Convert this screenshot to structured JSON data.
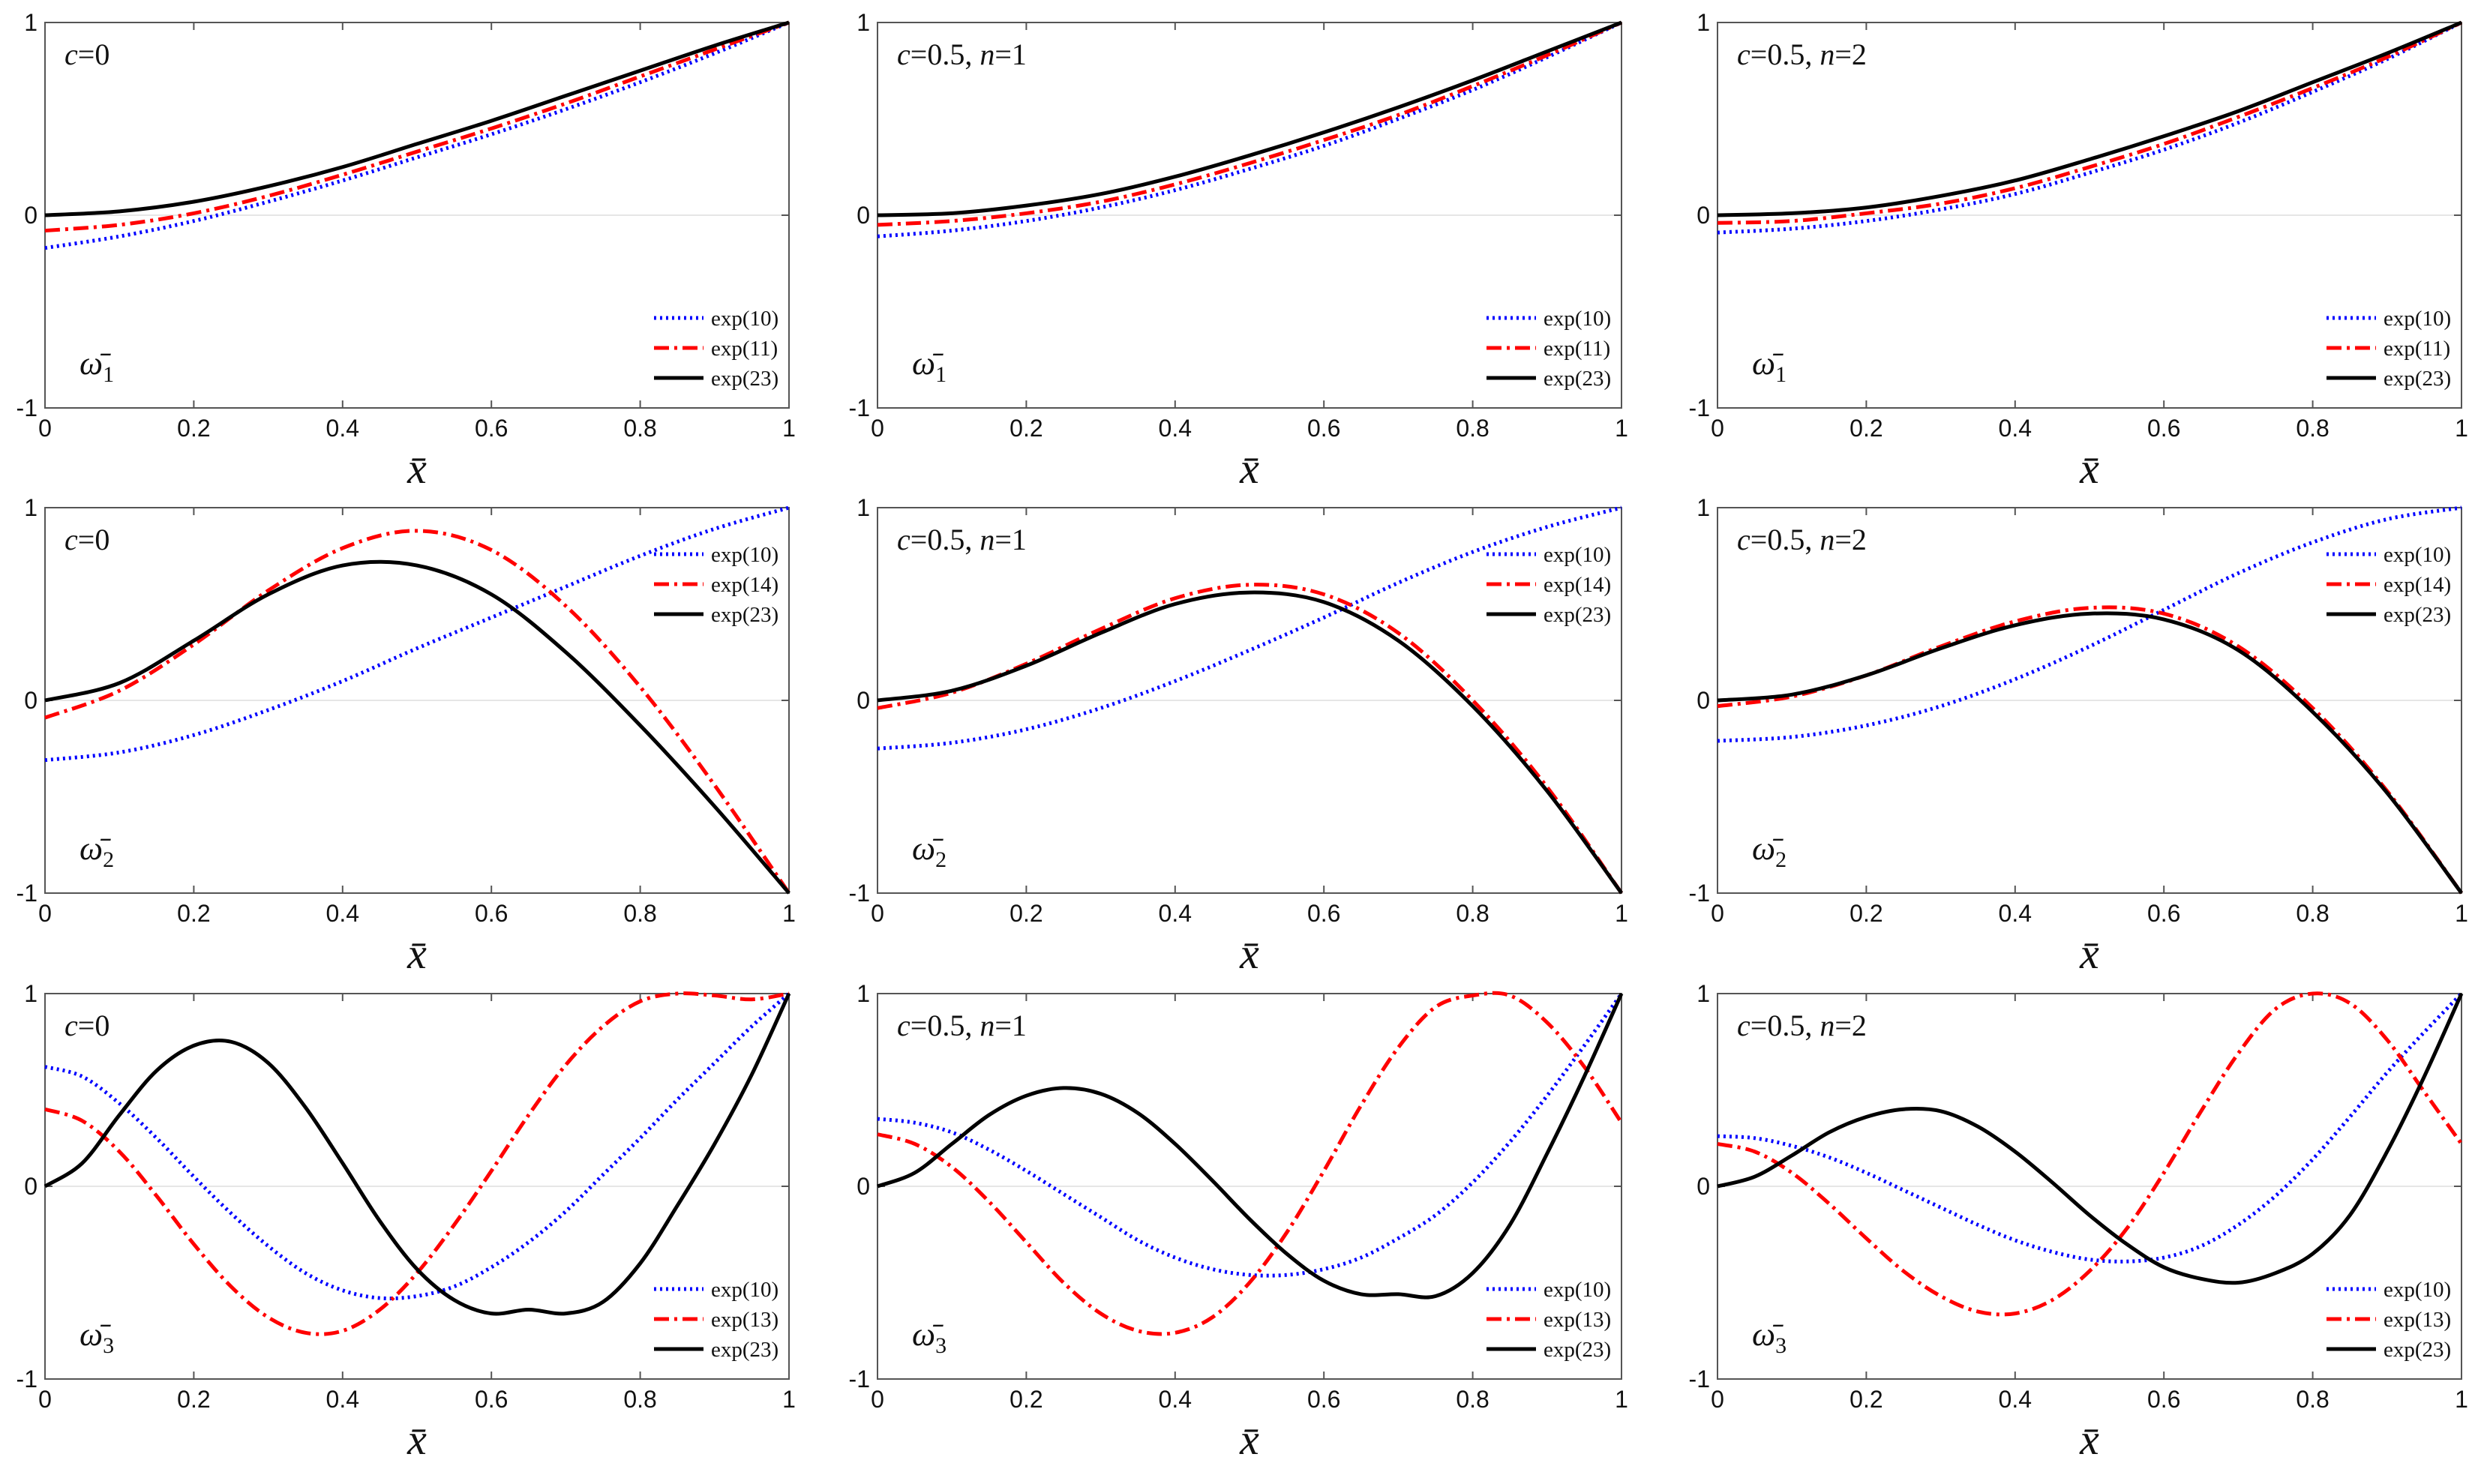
{
  "chart_data": [
    {
      "type": "line",
      "panel": "c=0, mode 1",
      "title": "c=0",
      "mode_symbol": "ω̄",
      "mode_index": "1",
      "xlabel": "x̄",
      "ylim": [
        -1,
        1
      ],
      "xlim": [
        0,
        1
      ],
      "x_ticks": [
        "0",
        "0.2",
        "0.4",
        "0.6",
        "0.8",
        "1"
      ],
      "y_ticks": [
        "-1",
        "0",
        "1"
      ],
      "legend_position": "bottom-right",
      "x": [
        0,
        0.1,
        0.2,
        0.3,
        0.4,
        0.5,
        0.6,
        0.7,
        0.8,
        0.9,
        1
      ],
      "series": [
        {
          "name": "exp(10)",
          "style": "dotted",
          "color": "#0000ff",
          "values": [
            -0.17,
            -0.11,
            -0.03,
            0.07,
            0.18,
            0.3,
            0.42,
            0.55,
            0.69,
            0.84,
            1.0
          ]
        },
        {
          "name": "exp(11)",
          "style": "dashdot",
          "color": "#ff0000",
          "values": [
            -0.08,
            -0.05,
            0.01,
            0.1,
            0.21,
            0.33,
            0.45,
            0.58,
            0.72,
            0.86,
            1.0
          ]
        },
        {
          "name": "exp(23)",
          "style": "solid",
          "color": "#000000",
          "values": [
            0,
            0.02,
            0.07,
            0.15,
            0.25,
            0.37,
            0.49,
            0.62,
            0.75,
            0.88,
            1.0
          ]
        }
      ]
    },
    {
      "type": "line",
      "panel": "c=0.5, n=1, mode 1",
      "title": "c=0.5, n=1",
      "mode_symbol": "ω̄",
      "mode_index": "1",
      "xlabel": "x̄",
      "ylim": [
        -1,
        1
      ],
      "xlim": [
        0,
        1
      ],
      "x_ticks": [
        "0",
        "0.2",
        "0.4",
        "0.6",
        "0.8",
        "1"
      ],
      "y_ticks": [
        "-1",
        "0",
        "1"
      ],
      "legend_position": "bottom-right",
      "x": [
        0,
        0.1,
        0.2,
        0.3,
        0.4,
        0.5,
        0.6,
        0.7,
        0.8,
        0.9,
        1
      ],
      "series": [
        {
          "name": "exp(10)",
          "style": "dotted",
          "color": "#0000ff",
          "values": [
            -0.11,
            -0.08,
            -0.03,
            0.04,
            0.13,
            0.24,
            0.36,
            0.5,
            0.65,
            0.82,
            1.0
          ]
        },
        {
          "name": "exp(11)",
          "style": "dashdot",
          "color": "#ff0000",
          "values": [
            -0.05,
            -0.03,
            0.01,
            0.07,
            0.16,
            0.27,
            0.39,
            0.52,
            0.67,
            0.83,
            1.0
          ]
        },
        {
          "name": "exp(23)",
          "style": "solid",
          "color": "#000000",
          "values": [
            0,
            0.01,
            0.05,
            0.11,
            0.2,
            0.31,
            0.43,
            0.56,
            0.7,
            0.85,
            1.0
          ]
        }
      ]
    },
    {
      "type": "line",
      "panel": "c=0.5, n=2, mode 1",
      "title": "c=0.5, n=2",
      "mode_symbol": "ω̄",
      "mode_index": "1",
      "xlabel": "x̄",
      "ylim": [
        -1,
        1
      ],
      "xlim": [
        0,
        1
      ],
      "x_ticks": [
        "0",
        "0.2",
        "0.4",
        "0.6",
        "0.8",
        "1"
      ],
      "y_ticks": [
        "-1",
        "0",
        "1"
      ],
      "legend_position": "bottom-right",
      "x": [
        0,
        0.1,
        0.2,
        0.3,
        0.4,
        0.5,
        0.6,
        0.7,
        0.8,
        0.9,
        1
      ],
      "series": [
        {
          "name": "exp(10)",
          "style": "dotted",
          "color": "#0000ff",
          "values": [
            -0.09,
            -0.07,
            -0.03,
            0.03,
            0.11,
            0.22,
            0.34,
            0.48,
            0.64,
            0.81,
            1.0
          ]
        },
        {
          "name": "exp(11)",
          "style": "dashdot",
          "color": "#ff0000",
          "values": [
            -0.04,
            -0.03,
            0.01,
            0.06,
            0.14,
            0.25,
            0.37,
            0.51,
            0.66,
            0.82,
            1.0
          ]
        },
        {
          "name": "exp(23)",
          "style": "solid",
          "color": "#000000",
          "values": [
            0,
            0.01,
            0.04,
            0.1,
            0.18,
            0.29,
            0.41,
            0.54,
            0.69,
            0.84,
            1.0
          ]
        }
      ]
    },
    {
      "type": "line",
      "panel": "c=0, mode 2",
      "title": "c=0",
      "mode_symbol": "ω̄",
      "mode_index": "2",
      "xlabel": "x̄",
      "ylim": [
        -1,
        1
      ],
      "xlim": [
        0,
        1
      ],
      "x_ticks": [
        "0",
        "0.2",
        "0.4",
        "0.6",
        "0.8",
        "1"
      ],
      "y_ticks": [
        "-1",
        "0",
        "1"
      ],
      "legend_position": "top-right",
      "x": [
        0,
        0.1,
        0.2,
        0.3,
        0.4,
        0.5,
        0.6,
        0.7,
        0.8,
        0.9,
        1
      ],
      "series": [
        {
          "name": "exp(10)",
          "style": "dotted",
          "color": "#0000ff",
          "values": [
            -0.31,
            -0.27,
            -0.18,
            -0.05,
            0.1,
            0.27,
            0.43,
            0.59,
            0.75,
            0.89,
            1.0
          ]
        },
        {
          "name": "exp(14)",
          "style": "dashdot",
          "color": "#ff0000",
          "values": [
            -0.09,
            0.05,
            0.29,
            0.57,
            0.79,
            0.88,
            0.78,
            0.49,
            0.07,
            -0.44,
            -1.0
          ]
        },
        {
          "name": "exp(23)",
          "style": "solid",
          "color": "#000000",
          "values": [
            0,
            0.09,
            0.31,
            0.55,
            0.7,
            0.7,
            0.55,
            0.25,
            -0.13,
            -0.55,
            -1.0
          ]
        }
      ]
    },
    {
      "type": "line",
      "panel": "c=0.5, n=1, mode 2",
      "title": "c=0.5, n=1",
      "mode_symbol": "ω̄",
      "mode_index": "2",
      "xlabel": "x̄",
      "ylim": [
        -1,
        1
      ],
      "xlim": [
        0,
        1
      ],
      "x_ticks": [
        "0",
        "0.2",
        "0.4",
        "0.6",
        "0.8",
        "1"
      ],
      "y_ticks": [
        "-1",
        "0",
        "1"
      ],
      "legend_position": "top-right",
      "x": [
        0,
        0.1,
        0.2,
        0.3,
        0.4,
        0.5,
        0.6,
        0.7,
        0.8,
        0.9,
        1
      ],
      "series": [
        {
          "name": "exp(10)",
          "style": "dotted",
          "color": "#0000ff",
          "values": [
            -0.25,
            -0.22,
            -0.15,
            -0.04,
            0.1,
            0.26,
            0.43,
            0.61,
            0.77,
            0.9,
            1.0
          ]
        },
        {
          "name": "exp(14)",
          "style": "dashdot",
          "color": "#ff0000",
          "values": [
            -0.04,
            0.04,
            0.19,
            0.37,
            0.53,
            0.6,
            0.55,
            0.35,
            0.0,
            -0.45,
            -1.0
          ]
        },
        {
          "name": "exp(23)",
          "style": "solid",
          "color": "#000000",
          "values": [
            0,
            0.05,
            0.18,
            0.35,
            0.5,
            0.56,
            0.51,
            0.31,
            -0.03,
            -0.47,
            -1.0
          ]
        }
      ]
    },
    {
      "type": "line",
      "panel": "c=0.5, n=2, mode 2",
      "title": "c=0.5, n=2",
      "mode_symbol": "ω̄",
      "mode_index": "2",
      "xlabel": "x̄",
      "ylim": [
        -1,
        1
      ],
      "xlim": [
        0,
        1
      ],
      "x_ticks": [
        "0",
        "0.2",
        "0.4",
        "0.6",
        "0.8",
        "1"
      ],
      "y_ticks": [
        "-1",
        "0",
        "1"
      ],
      "legend_position": "top-right",
      "x": [
        0,
        0.1,
        0.2,
        0.3,
        0.4,
        0.5,
        0.6,
        0.7,
        0.8,
        0.9,
        1
      ],
      "series": [
        {
          "name": "exp(10)",
          "style": "dotted",
          "color": "#0000ff",
          "values": [
            -0.21,
            -0.19,
            -0.13,
            -0.03,
            0.11,
            0.28,
            0.47,
            0.66,
            0.82,
            0.94,
            1.0
          ]
        },
        {
          "name": "exp(14)",
          "style": "dashdot",
          "color": "#ff0000",
          "values": [
            -0.03,
            0.02,
            0.13,
            0.28,
            0.41,
            0.48,
            0.45,
            0.28,
            -0.04,
            -0.47,
            -1.0
          ]
        },
        {
          "name": "exp(23)",
          "style": "solid",
          "color": "#000000",
          "values": [
            0,
            0.03,
            0.13,
            0.27,
            0.39,
            0.45,
            0.42,
            0.26,
            -0.06,
            -0.48,
            -1.0
          ]
        }
      ]
    },
    {
      "type": "line",
      "panel": "c=0, mode 3",
      "title": "c=0",
      "mode_symbol": "ω̄",
      "mode_index": "3",
      "xlabel": "x̄",
      "ylim": [
        -1,
        1
      ],
      "xlim": [
        0,
        1
      ],
      "x_ticks": [
        "0",
        "0.2",
        "0.4",
        "0.6",
        "0.8",
        "1"
      ],
      "y_ticks": [
        "-1",
        "0",
        "1"
      ],
      "legend_position": "bottom-right",
      "x": [
        0,
        0.05,
        0.1,
        0.15,
        0.2,
        0.25,
        0.3,
        0.35,
        0.4,
        0.45,
        0.5,
        0.55,
        0.6,
        0.65,
        0.7,
        0.75,
        0.8,
        0.85,
        0.9,
        0.95,
        1
      ],
      "series": [
        {
          "name": "exp(10)",
          "style": "dotted",
          "color": "#0000ff",
          "values": [
            0.62,
            0.57,
            0.43,
            0.25,
            0.05,
            -0.14,
            -0.31,
            -0.45,
            -0.54,
            -0.58,
            -0.57,
            -0.52,
            -0.42,
            -0.29,
            -0.13,
            0.06,
            0.25,
            0.45,
            0.64,
            0.83,
            1.0
          ]
        },
        {
          "name": "exp(13)",
          "style": "dashdot",
          "color": "#ff0000",
          "values": [
            0.4,
            0.34,
            0.18,
            -0.05,
            -0.3,
            -0.52,
            -0.68,
            -0.76,
            -0.75,
            -0.64,
            -0.45,
            -0.2,
            0.08,
            0.37,
            0.63,
            0.83,
            0.96,
            1.0,
            0.99,
            0.97,
            1.0
          ]
        },
        {
          "name": "exp(23)",
          "style": "solid",
          "color": "#000000",
          "values": [
            0,
            0.12,
            0.37,
            0.6,
            0.73,
            0.75,
            0.64,
            0.41,
            0.12,
            -0.18,
            -0.43,
            -0.59,
            -0.66,
            -0.64,
            -0.66,
            -0.6,
            -0.4,
            -0.1,
            0.22,
            0.58,
            1.0
          ]
        }
      ]
    },
    {
      "type": "line",
      "panel": "c=0.5, n=1, mode 3",
      "title": "c=0.5, n=1",
      "mode_symbol": "ω̄",
      "mode_index": "3",
      "xlabel": "x̄",
      "ylim": [
        -1,
        1
      ],
      "xlim": [
        0,
        1
      ],
      "x_ticks": [
        "0",
        "0.2",
        "0.4",
        "0.6",
        "0.8",
        "1"
      ],
      "y_ticks": [
        "-1",
        "0",
        "1"
      ],
      "legend_position": "bottom-right",
      "x": [
        0,
        0.05,
        0.1,
        0.15,
        0.2,
        0.25,
        0.3,
        0.35,
        0.4,
        0.45,
        0.5,
        0.55,
        0.6,
        0.65,
        0.7,
        0.75,
        0.8,
        0.85,
        0.9,
        0.95,
        1
      ],
      "series": [
        {
          "name": "exp(10)",
          "style": "dotted",
          "color": "#0000ff",
          "values": [
            0.35,
            0.33,
            0.28,
            0.19,
            0.08,
            -0.04,
            -0.16,
            -0.28,
            -0.37,
            -0.43,
            -0.46,
            -0.46,
            -0.43,
            -0.37,
            -0.27,
            -0.15,
            0.02,
            0.23,
            0.47,
            0.73,
            1.0
          ]
        },
        {
          "name": "exp(13)",
          "style": "dashdot",
          "color": "#ff0000",
          "values": [
            0.27,
            0.22,
            0.1,
            -0.08,
            -0.29,
            -0.5,
            -0.66,
            -0.75,
            -0.76,
            -0.68,
            -0.5,
            -0.24,
            0.08,
            0.42,
            0.72,
            0.93,
            0.99,
            0.99,
            0.85,
            0.62,
            0.33
          ]
        },
        {
          "name": "exp(23)",
          "style": "solid",
          "color": "#000000",
          "values": [
            0,
            0.07,
            0.22,
            0.37,
            0.47,
            0.51,
            0.48,
            0.38,
            0.22,
            0.03,
            -0.17,
            -0.35,
            -0.49,
            -0.56,
            -0.56,
            -0.57,
            -0.45,
            -0.2,
            0.17,
            0.57,
            1.0
          ]
        }
      ]
    },
    {
      "type": "line",
      "panel": "c=0.5, n=2, mode 3",
      "title": "c=0.5, n=2",
      "mode_symbol": "ω̄",
      "mode_index": "3",
      "xlabel": "x̄",
      "ylim": [
        -1,
        1
      ],
      "xlim": [
        0,
        1
      ],
      "x_ticks": [
        "0",
        "0.2",
        "0.4",
        "0.6",
        "0.8",
        "1"
      ],
      "y_ticks": [
        "-1",
        "0",
        "1"
      ],
      "legend_position": "bottom-right",
      "x": [
        0,
        0.05,
        0.1,
        0.15,
        0.2,
        0.25,
        0.3,
        0.35,
        0.4,
        0.45,
        0.5,
        0.55,
        0.6,
        0.65,
        0.7,
        0.75,
        0.8,
        0.85,
        0.9,
        0.95,
        1
      ],
      "series": [
        {
          "name": "exp(10)",
          "style": "dotted",
          "color": "#0000ff",
          "values": [
            0.26,
            0.25,
            0.21,
            0.15,
            0.07,
            -0.02,
            -0.11,
            -0.2,
            -0.28,
            -0.34,
            -0.38,
            -0.39,
            -0.37,
            -0.31,
            -0.2,
            -0.05,
            0.14,
            0.36,
            0.59,
            0.8,
            1.0
          ]
        },
        {
          "name": "exp(13)",
          "style": "dashdot",
          "color": "#ff0000",
          "values": [
            0.22,
            0.18,
            0.07,
            -0.09,
            -0.27,
            -0.44,
            -0.57,
            -0.65,
            -0.66,
            -0.59,
            -0.44,
            -0.22,
            0.07,
            0.39,
            0.69,
            0.92,
            1.0,
            0.95,
            0.76,
            0.49,
            0.22
          ]
        },
        {
          "name": "exp(23)",
          "style": "solid",
          "color": "#000000",
          "values": [
            0,
            0.05,
            0.16,
            0.28,
            0.36,
            0.4,
            0.39,
            0.31,
            0.18,
            0.02,
            -0.15,
            -0.3,
            -0.42,
            -0.48,
            -0.5,
            -0.45,
            -0.35,
            -0.15,
            0.18,
            0.57,
            1.0
          ]
        }
      ]
    }
  ]
}
